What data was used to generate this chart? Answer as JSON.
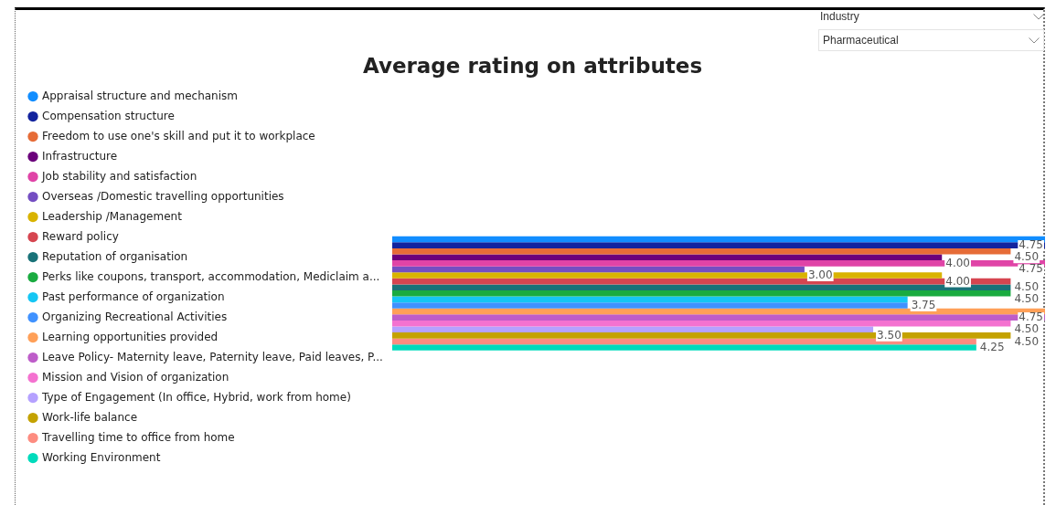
{
  "chart_data": {
    "type": "bar",
    "orientation": "horizontal",
    "title": "Average rating on attributes",
    "annotations": [
      "Industry",
      "Pharmaceutical"
    ],
    "categories": [
      null
    ],
    "xlim": [
      0,
      4.75
    ],
    "tick_labels": false,
    "grid": false,
    "legend": "left",
    "series": [
      {
        "name": "Appraisal structure and mechanism",
        "color": "#118dff",
        "values": [
          4.75
        ],
        "value_labels": [
          "4.75"
        ]
      },
      {
        "name": "Compensation structure",
        "color": "#12239e",
        "values": [
          4.75
        ],
        "value_labels": [
          null
        ]
      },
      {
        "name": "Freedom to use one's skill and put it to workplace",
        "color": "#e66c37",
        "values": [
          4.5
        ],
        "value_labels": [
          "4.50"
        ]
      },
      {
        "name": "Infrastructure",
        "color": "#6b007b",
        "values": [
          4.0
        ],
        "value_labels": [
          "4.00"
        ]
      },
      {
        "name": "Job stability and satisfaction",
        "color": "#e044a7",
        "values": [
          4.75
        ],
        "value_labels": [
          "4.75"
        ]
      },
      {
        "name": "Overseas /Domestic travelling opportunities",
        "color": "#744ec2",
        "values": [
          3.0
        ],
        "value_labels": [
          "3.00"
        ]
      },
      {
        "name": "Leadership /Management",
        "color": "#d9b300",
        "values": [
          4.0
        ],
        "value_labels": [
          "4.00"
        ]
      },
      {
        "name": "Reward policy",
        "color": "#d64550",
        "values": [
          4.5
        ],
        "value_labels": [
          "4.50"
        ]
      },
      {
        "name": "Reputation of organisation",
        "color": "#197278",
        "values": [
          4.5
        ],
        "value_labels": [
          null
        ]
      },
      {
        "name": "Perks like coupons, transport, accommodation, Mediclaim a...",
        "color": "#1aab40",
        "values": [
          4.5
        ],
        "value_labels": [
          "4.50"
        ]
      },
      {
        "name": "Past performance of organization",
        "color": "#15c6f4",
        "values": [
          3.75
        ],
        "value_labels": [
          "3.75"
        ]
      },
      {
        "name": "Organizing Recreational Activities",
        "color": "#4092ff",
        "values": [
          3.75
        ],
        "value_labels": [
          null
        ]
      },
      {
        "name": "Learning opportunities provided",
        "color": "#ffa058",
        "values": [
          4.75
        ],
        "value_labels": [
          "4.75"
        ]
      },
      {
        "name": "Leave Policy- Maternity leave, Paternity leave, Paid leaves, P...",
        "color": "#be5dc9",
        "values": [
          4.75
        ],
        "value_labels": [
          null
        ]
      },
      {
        "name": "Mission and Vision of organization",
        "color": "#f472d0",
        "values": [
          4.5
        ],
        "value_labels": [
          "4.50"
        ]
      },
      {
        "name": "Type of Engagement (In office, Hybrid, work from home)",
        "color": "#b5a1ff",
        "values": [
          3.5
        ],
        "value_labels": [
          "3.50"
        ]
      },
      {
        "name": "Work-life balance",
        "color": "#c4a200",
        "values": [
          4.5
        ],
        "value_labels": [
          "4.50"
        ]
      },
      {
        "name": "Travelling time to office from home",
        "color": "#fd8c80",
        "values": [
          4.25
        ],
        "value_labels": [
          "4.25"
        ]
      },
      {
        "name": "Working Environment",
        "color": "#00dbbc",
        "values": [
          4.25
        ],
        "value_labels": [
          null
        ]
      }
    ]
  }
}
